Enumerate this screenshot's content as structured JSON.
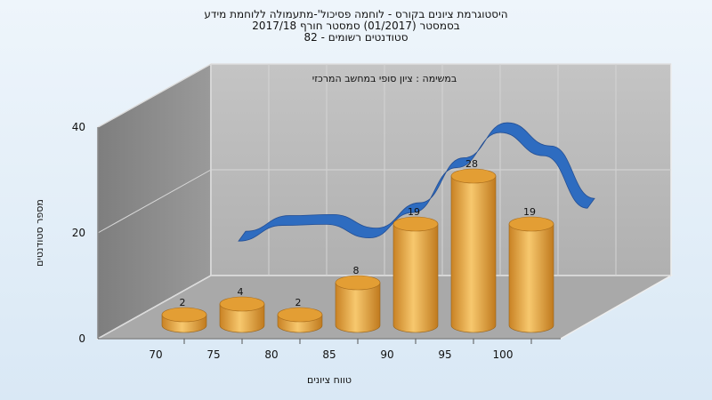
{
  "chart_data": {
    "type": "bar",
    "title_lines": [
      "היסטוגרמת ציונים בקורס - לוחמה פסיכול'-מתעמולה ללוחמת מידע",
      "בסמסטר  (01/2017)  סמסטר חורף 2017/18",
      "סטודנטים רשומים - 82"
    ],
    "subtitle": "במשימה : ציון סופי במחשב המרכזי",
    "xlabel": "טווח ציונים",
    "ylabel": "מספר סטודנטים",
    "categories": [
      "70",
      "75",
      "80",
      "85",
      "90",
      "95",
      "100"
    ],
    "values": [
      2,
      4,
      2,
      8,
      19,
      28,
      19
    ],
    "trend_values": [
      8,
      11,
      11,
      8,
      13,
      22,
      29,
      24,
      13
    ],
    "ylim": [
      0,
      40
    ],
    "yticks": [
      0,
      20,
      40
    ],
    "grid": true,
    "colors": {
      "bar": "#e8a742",
      "trend": "#2e6cc0",
      "back_wall": "#bdbdbd",
      "side_wall": "#8a8a8a",
      "floor": "#a8a8a8"
    }
  }
}
